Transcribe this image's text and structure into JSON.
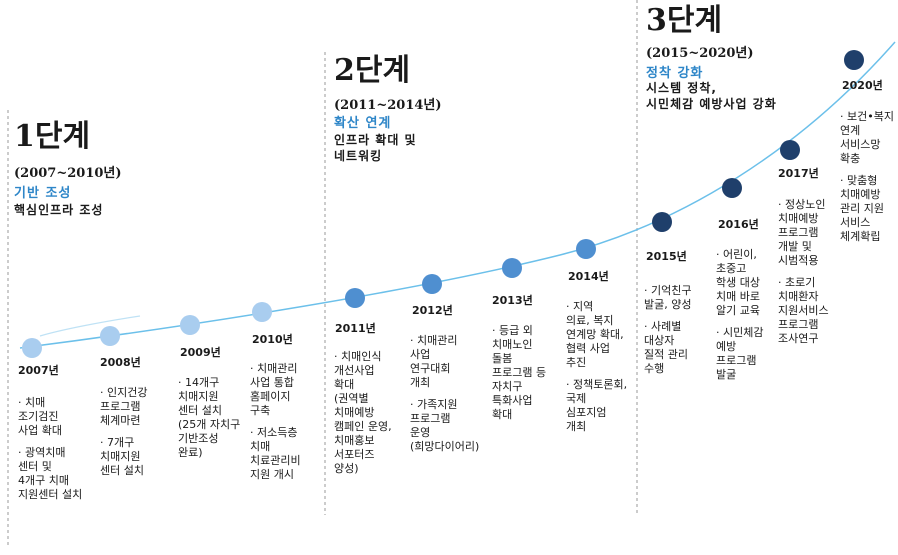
{
  "stages": [
    {
      "title": "1단계",
      "period": "(2007~2010년)",
      "theme": "기반 조성",
      "desc": [
        "핵심인프라 조성"
      ]
    },
    {
      "title": "2단계",
      "period": "(2011~2014년)",
      "theme": "확산 연계",
      "desc": [
        "인프라 확대 및",
        "네트워킹"
      ]
    },
    {
      "title": "3단계",
      "period": "(2015~2020년)",
      "theme": "정착 강화",
      "desc": [
        "시스템 정착,",
        "시민체감 예방사업 강화"
      ]
    }
  ],
  "milestones": [
    {
      "year": "2007년",
      "notes": [
        [
          "· 치매",
          "조기검진",
          "사업 확대"
        ],
        [
          "· 광역치매",
          "센터 및",
          "4개구 치매",
          "지원센터 설치"
        ]
      ]
    },
    {
      "year": "2008년",
      "notes": [
        [
          "· 인지건강",
          "프로그램",
          "체계마련"
        ],
        [
          "· 7개구",
          "치매지원",
          "센터 설치"
        ]
      ]
    },
    {
      "year": "2009년",
      "notes": [
        [
          "· 14개구",
          "치매지원",
          "센터 설치",
          "(25개 자치구",
          "기반조성",
          "완료)"
        ]
      ]
    },
    {
      "year": "2010년",
      "notes": [
        [
          "· 치매관리",
          "사업 통합",
          "홈페이지",
          "구축"
        ],
        [
          "· 저소득층",
          "치매",
          "치료관리비",
          "지원 개시"
        ]
      ]
    },
    {
      "year": "2011년",
      "notes": [
        [
          "· 치매인식",
          "개선사업",
          "확대",
          "(권역별",
          "치매예방",
          "캠페인 운영,",
          "치매홍보",
          "서포터즈",
          "양성)"
        ]
      ]
    },
    {
      "year": "2012년",
      "notes": [
        [
          "· 치매관리",
          "사업",
          "연구대회",
          "개최"
        ],
        [
          "· 가족지원",
          "프로그램",
          "운영",
          "(희망다이어리)"
        ]
      ]
    },
    {
      "year": "2013년",
      "notes": [
        [
          "· 등급 외",
          "치매노인",
          "돌봄",
          "프로그램 등",
          "자치구",
          "특화사업",
          "확대"
        ]
      ]
    },
    {
      "year": "2014년",
      "notes": [
        [
          "· 지역",
          "의료, 복지",
          "연계망 확대,",
          "협력 사업",
          "추진"
        ],
        [
          "· 정책토론회,",
          "국제",
          "심포지엄",
          "개최"
        ]
      ]
    },
    {
      "year": "2015년",
      "notes": [
        [
          "· 기억친구",
          "발굴, 양성"
        ],
        [
          "· 사례별",
          "대상자",
          "질적 관리",
          "수행"
        ]
      ]
    },
    {
      "year": "2016년",
      "notes": [
        [
          "· 어린이,",
          "초중고",
          "학생 대상",
          "치매 바로",
          "알기 교육"
        ],
        [
          "· 시민체감",
          "예방",
          "프로그램",
          "발굴"
        ]
      ]
    },
    {
      "year": "2017년",
      "notes": [
        [
          "· 정상노인",
          "치매예방",
          "프로그램",
          "개발 및",
          "시범적용"
        ],
        [
          "· 초로기",
          "치매환자",
          "지원서비스",
          "프로그램",
          "조사연구"
        ]
      ]
    },
    {
      "year": "2020년",
      "notes": [
        [
          "· 보건•복지",
          "연계",
          "서비스망",
          "확충"
        ],
        [
          "· 맞춤형",
          "치매예방",
          "관리 지원",
          "서비스",
          "체계확립"
        ]
      ]
    }
  ],
  "colors": {
    "light": "#a9cdef",
    "mid": "#4f8fd0",
    "dark": "#1f3f6b",
    "curve": "#6cc0ea",
    "theme": "#2e86c8"
  }
}
